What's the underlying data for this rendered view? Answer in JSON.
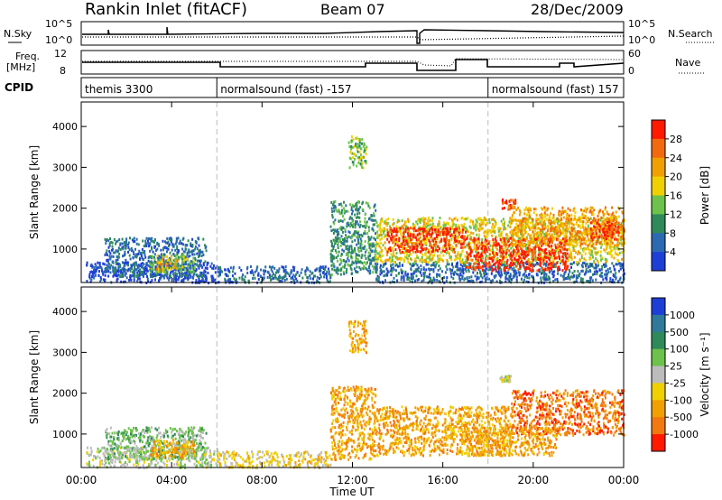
{
  "header": {
    "title": "Rankin Inlet (fitACF)",
    "beam": "Beam 07",
    "date": "28/Dec/2009"
  },
  "top_panels": {
    "nsky_label": "N.Sky",
    "nsearch_label": "N.Search",
    "noise_ticks": [
      "10^5",
      "10^0"
    ],
    "freq_label_1": "Freq.",
    "freq_label_2": "[MHz]",
    "freq_ticks": [
      "12",
      "8"
    ],
    "nave_label": "Nave",
    "nave_ticks": [
      "60",
      "0"
    ],
    "cpid_label": "CPID"
  },
  "cpid_segments": [
    {
      "start_hour": 0,
      "end_hour": 6,
      "name": "themis 3300"
    },
    {
      "start_hour": 6,
      "end_hour": 18,
      "name": "normalsound (fast) -157"
    },
    {
      "start_hour": 18,
      "end_hour": 24,
      "name": "normalsound (fast) 157"
    }
  ],
  "chart_data": [
    {
      "type": "heatmap",
      "title": "",
      "xlabel": "",
      "ylabel": "Slant Range [km]",
      "x_ticks": [
        "00:00",
        "04:00",
        "08:00",
        "12:00",
        "16:00",
        "20:00",
        "00:00"
      ],
      "xlim_hours": [
        0,
        24
      ],
      "ylim": [
        180,
        4600
      ],
      "y_ticks": [
        1000,
        2000,
        3000,
        4000
      ],
      "colorbar": {
        "label": "Power [dB]",
        "ticks": [
          "4",
          "8",
          "12",
          "16",
          "20",
          "24",
          "28"
        ],
        "colors": [
          "#1e3fd6",
          "#2b6ab0",
          "#2f8a5a",
          "#6cc24a",
          "#f0d000",
          "#f0a000",
          "#f26a10",
          "#ff1a00"
        ]
      },
      "echo_regions": [
        {
          "t0": 0.2,
          "t1": 6.0,
          "r0": 200,
          "r1": 700,
          "level": 0
        },
        {
          "t0": 1.0,
          "t1": 5.5,
          "r0": 350,
          "r1": 1300,
          "level": 1
        },
        {
          "t0": 3.0,
          "t1": 5.0,
          "r0": 450,
          "r1": 900,
          "level": 3
        },
        {
          "t0": 3.3,
          "t1": 4.3,
          "r0": 520,
          "r1": 780,
          "level": 5
        },
        {
          "t0": 6.0,
          "t1": 11.0,
          "r0": 200,
          "r1": 600,
          "level": 1
        },
        {
          "t0": 11.0,
          "t1": 13.0,
          "r0": 400,
          "r1": 2200,
          "level": 2
        },
        {
          "t0": 11.8,
          "t1": 12.6,
          "r0": 3000,
          "r1": 3800,
          "level": 3
        },
        {
          "t0": 13.0,
          "t1": 24.0,
          "r0": 200,
          "r1": 700,
          "level": 1
        },
        {
          "t0": 13.0,
          "t1": 24.0,
          "r0": 700,
          "r1": 1800,
          "level": 4
        },
        {
          "t0": 13.5,
          "t1": 17.0,
          "r0": 950,
          "r1": 1550,
          "level": 7
        },
        {
          "t0": 17.0,
          "t1": 21.5,
          "r0": 500,
          "r1": 1300,
          "level": 7
        },
        {
          "t0": 19.0,
          "t1": 24.0,
          "r0": 1100,
          "r1": 2050,
          "level": 5
        },
        {
          "t0": 22.5,
          "t1": 23.8,
          "r0": 1250,
          "r1": 1750,
          "level": 7
        },
        {
          "t0": 18.6,
          "t1": 19.2,
          "r0": 2000,
          "r1": 2250,
          "level": 6
        }
      ]
    },
    {
      "type": "heatmap",
      "title": "",
      "xlabel": "Time UT",
      "ylabel": "Slant Range [km]",
      "x_ticks": [
        "00:00",
        "04:00",
        "08:00",
        "12:00",
        "16:00",
        "20:00",
        "00:00"
      ],
      "xlim_hours": [
        0,
        24
      ],
      "ylim": [
        180,
        4600
      ],
      "y_ticks": [
        1000,
        2000,
        3000,
        4000
      ],
      "colorbar": {
        "label": "Velocity [m s⁻¹]",
        "ticks": [
          "1000",
          "500",
          "100",
          "25",
          "-25",
          "-100",
          "-500",
          "-1000"
        ],
        "colors": [
          "#1e3fd6",
          "#2f7a9a",
          "#2f8a5a",
          "#6cc24a",
          "#bcbcbc",
          "#f0d000",
          "#f0a000",
          "#f27810",
          "#ff1a00"
        ]
      },
      "echo_regions": [
        {
          "t0": 0.2,
          "t1": 6.0,
          "r0": 200,
          "r1": 700,
          "level": 4
        },
        {
          "t0": 1.0,
          "t1": 5.5,
          "r0": 400,
          "r1": 1200,
          "level": 3
        },
        {
          "t0": 3.0,
          "t1": 5.0,
          "r0": 450,
          "r1": 900,
          "level": 6
        },
        {
          "t0": 6.0,
          "t1": 11.0,
          "r0": 200,
          "r1": 600,
          "level": 5
        },
        {
          "t0": 11.0,
          "t1": 13.0,
          "r0": 400,
          "r1": 2200,
          "level": 6
        },
        {
          "t0": 11.8,
          "t1": 12.6,
          "r0": 3000,
          "r1": 3800,
          "level": 6
        },
        {
          "t0": 13.0,
          "t1": 19.0,
          "r0": 500,
          "r1": 1700,
          "level": 6
        },
        {
          "t0": 19.0,
          "t1": 24.0,
          "r0": 1000,
          "r1": 2100,
          "level": 7
        },
        {
          "t0": 17.0,
          "t1": 21.0,
          "r0": 500,
          "r1": 1200,
          "level": 6
        },
        {
          "t0": 18.5,
          "t1": 19.0,
          "r0": 2300,
          "r1": 2450,
          "level": 4
        }
      ]
    }
  ]
}
